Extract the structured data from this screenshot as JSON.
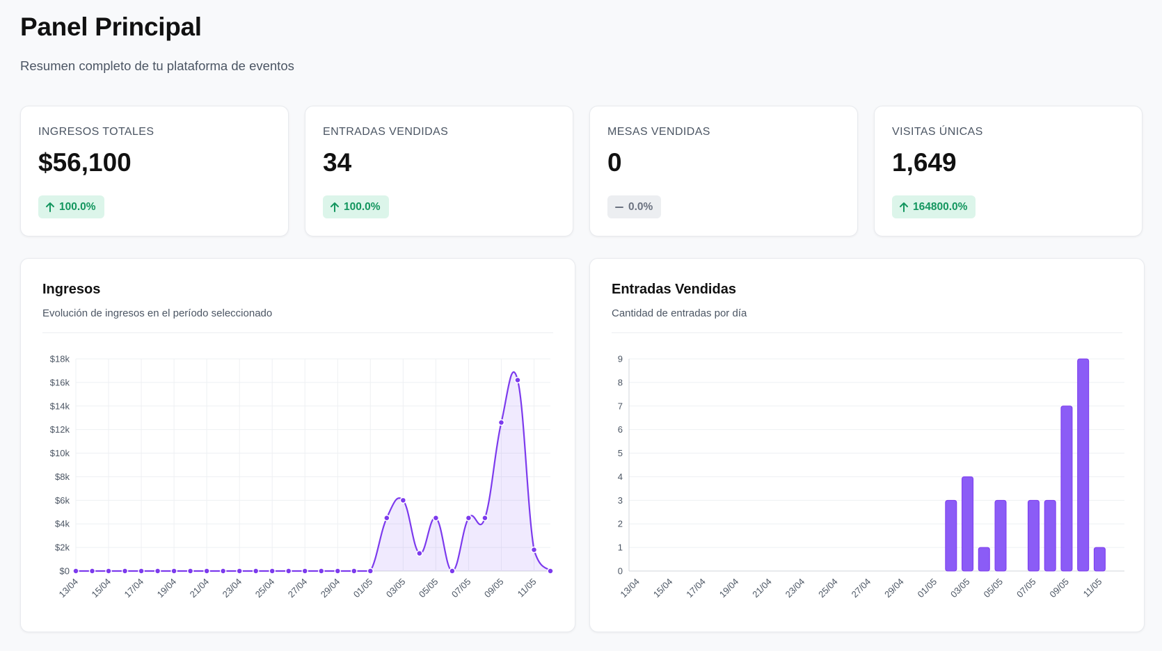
{
  "header": {
    "title": "Panel Principal",
    "subtitle": "Resumen completo de tu plataforma de eventos"
  },
  "stats": [
    {
      "label": "INGRESOS TOTALES",
      "value": "$56,100",
      "change": "100.0%",
      "trend": "up"
    },
    {
      "label": "ENTRADAS VENDIDAS",
      "value": "34",
      "change": "100.0%",
      "trend": "up"
    },
    {
      "label": "MESAS VENDIDAS",
      "value": "0",
      "change": "0.0%",
      "trend": "flat"
    },
    {
      "label": "VISITAS ÚNICAS",
      "value": "1,649",
      "change": "164800.0%",
      "trend": "up"
    }
  ],
  "colors": {
    "accent": "#8b5cf6",
    "line": "#7c3aed",
    "positive": "#14965f",
    "positive_bg": "#dcf5ea",
    "neutral": "#6b7280"
  },
  "charts": {
    "revenue": {
      "title": "Ingresos",
      "subtitle": "Evolución de ingresos en el período seleccionado"
    },
    "tickets": {
      "title": "Entradas Vendidas",
      "subtitle": "Cantidad de entradas por día"
    }
  },
  "chart_data": [
    {
      "type": "area",
      "title": "Ingresos",
      "x": [
        "13/04",
        "14/04",
        "15/04",
        "16/04",
        "17/04",
        "18/04",
        "19/04",
        "20/04",
        "21/04",
        "22/04",
        "23/04",
        "24/04",
        "25/04",
        "26/04",
        "27/04",
        "28/04",
        "29/04",
        "30/04",
        "01/05",
        "02/05",
        "03/05",
        "04/05",
        "05/05",
        "06/05",
        "07/05",
        "08/05",
        "09/05",
        "10/05",
        "11/05",
        "12/05"
      ],
      "x_tick_labels": [
        "13/04",
        "15/04",
        "17/04",
        "19/04",
        "21/04",
        "23/04",
        "25/04",
        "27/04",
        "29/04",
        "01/05",
        "03/05",
        "05/05",
        "07/05",
        "09/05",
        "11/05"
      ],
      "values": [
        0,
        0,
        0,
        0,
        0,
        0,
        0,
        0,
        0,
        0,
        0,
        0,
        0,
        0,
        0,
        0,
        0,
        0,
        0,
        4500,
        6000,
        1500,
        4500,
        0,
        4500,
        4500,
        12600,
        16200,
        1800,
        0
      ],
      "ylim": [
        0,
        18000
      ],
      "y_ticks": [
        "$0",
        "$2k",
        "$4k",
        "$6k",
        "$8k",
        "$10k",
        "$12k",
        "$14k",
        "$16k",
        "$18k"
      ],
      "grid": true
    },
    {
      "type": "bar",
      "title": "Entradas Vendidas",
      "x": [
        "13/04",
        "14/04",
        "15/04",
        "16/04",
        "17/04",
        "18/04",
        "19/04",
        "20/04",
        "21/04",
        "22/04",
        "23/04",
        "24/04",
        "25/04",
        "26/04",
        "27/04",
        "28/04",
        "29/04",
        "30/04",
        "01/05",
        "02/05",
        "03/05",
        "04/05",
        "05/05",
        "06/05",
        "07/05",
        "08/05",
        "09/05",
        "10/05",
        "11/05",
        "12/05"
      ],
      "x_tick_labels": [
        "13/04",
        "15/04",
        "17/04",
        "19/04",
        "21/04",
        "23/04",
        "25/04",
        "27/04",
        "29/04",
        "01/05",
        "03/05",
        "05/05",
        "07/05",
        "09/05",
        "11/05"
      ],
      "values": [
        0,
        0,
        0,
        0,
        0,
        0,
        0,
        0,
        0,
        0,
        0,
        0,
        0,
        0,
        0,
        0,
        0,
        0,
        0,
        3,
        4,
        1,
        3,
        0,
        3,
        3,
        7,
        9,
        1,
        0
      ],
      "ylim": [
        0,
        9
      ],
      "y_ticks": [
        "0",
        "1",
        "2",
        "3",
        "4",
        "5",
        "6",
        "7",
        "8",
        "9"
      ],
      "grid": true
    }
  ]
}
